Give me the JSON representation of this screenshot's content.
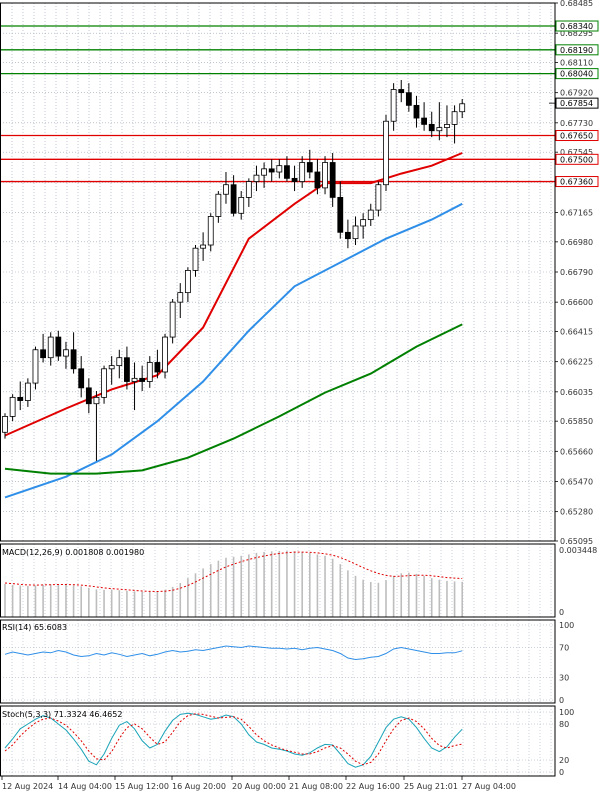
{
  "chart_data": {
    "type": "candlestick",
    "symbol_note": "",
    "price_axis": {
      "ylim": [
        0.65095,
        0.68485
      ],
      "ticks": [
        0.68485,
        0.68295,
        0.6811,
        0.6792,
        0.6773,
        0.67545,
        0.67355,
        0.67165,
        0.6698,
        0.6679,
        0.666,
        0.66415,
        0.66225,
        0.66035,
        0.6585,
        0.6566,
        0.6547,
        0.6528,
        0.65095
      ],
      "tick_labels": [
        "0.68485",
        "0.68295",
        "0.68110",
        "0.67920",
        "0.67730",
        "0.67545",
        "0.67355",
        "0.67165",
        "0.66980",
        "0.66790",
        "0.66600",
        "0.66415",
        "0.66225",
        "0.66035",
        "0.65850",
        "0.65660",
        "0.65470",
        "0.65280",
        "0.65095"
      ]
    },
    "resistance_levels": [
      {
        "value": 0.6834,
        "label": "0.68340",
        "color": "#008000"
      },
      {
        "value": 0.6819,
        "label": "0.68190",
        "color": "#008000"
      },
      {
        "value": 0.6804,
        "label": "0.68040",
        "color": "#008000"
      }
    ],
    "support_levels": [
      {
        "value": 0.6765,
        "label": "0.67650",
        "color": "#e00000"
      },
      {
        "value": 0.675,
        "label": "0.67500",
        "color": "#e00000"
      },
      {
        "value": 0.6736,
        "label": "0.67360",
        "color": "#e00000"
      }
    ],
    "current_price": {
      "value": 0.67854,
      "label": "0.67854"
    },
    "candles": [
      [
        0.6578,
        0.659,
        0.6574,
        0.6588
      ],
      [
        0.6588,
        0.6602,
        0.6585,
        0.66
      ],
      [
        0.66,
        0.661,
        0.6592,
        0.6598
      ],
      [
        0.6598,
        0.6612,
        0.6594,
        0.6609
      ],
      [
        0.6609,
        0.6632,
        0.6605,
        0.663
      ],
      [
        0.663,
        0.664,
        0.6622,
        0.6625
      ],
      [
        0.6625,
        0.6641,
        0.662,
        0.6638
      ],
      [
        0.6638,
        0.6642,
        0.6623,
        0.6626
      ],
      [
        0.6626,
        0.6635,
        0.6618,
        0.663
      ],
      [
        0.663,
        0.6641,
        0.6615,
        0.6618
      ],
      [
        0.6618,
        0.6626,
        0.66,
        0.6606
      ],
      [
        0.6606,
        0.6612,
        0.659,
        0.6596
      ],
      [
        0.6596,
        0.6604,
        0.656,
        0.66
      ],
      [
        0.66,
        0.662,
        0.6596,
        0.6618
      ],
      [
        0.6618,
        0.6626,
        0.6608,
        0.662
      ],
      [
        0.662,
        0.663,
        0.6612,
        0.6625
      ],
      [
        0.6625,
        0.6632,
        0.6605,
        0.661
      ],
      [
        0.661,
        0.6622,
        0.6592,
        0.6612
      ],
      [
        0.6612,
        0.662,
        0.6604,
        0.661
      ],
      [
        0.661,
        0.6626,
        0.6606,
        0.6622
      ],
      [
        0.6622,
        0.663,
        0.6612,
        0.6616
      ],
      [
        0.6616,
        0.664,
        0.6612,
        0.6638
      ],
      [
        0.6638,
        0.6662,
        0.6634,
        0.666
      ],
      [
        0.666,
        0.6672,
        0.665,
        0.6666
      ],
      [
        0.6666,
        0.6682,
        0.666,
        0.668
      ],
      [
        0.668,
        0.6696,
        0.6676,
        0.6694
      ],
      [
        0.6694,
        0.6704,
        0.6686,
        0.6696
      ],
      [
        0.6696,
        0.6716,
        0.6692,
        0.6714
      ],
      [
        0.6714,
        0.673,
        0.671,
        0.6728
      ],
      [
        0.6728,
        0.6742,
        0.6722,
        0.6734
      ],
      [
        0.6734,
        0.674,
        0.6714,
        0.6716
      ],
      [
        0.6716,
        0.673,
        0.6712,
        0.6726
      ],
      [
        0.6726,
        0.6738,
        0.672,
        0.6736
      ],
      [
        0.6736,
        0.6746,
        0.673,
        0.674
      ],
      [
        0.674,
        0.6748,
        0.6732,
        0.6744
      ],
      [
        0.6744,
        0.675,
        0.6736,
        0.6742
      ],
      [
        0.6742,
        0.675,
        0.6738,
        0.6746
      ],
      [
        0.6746,
        0.6752,
        0.6736,
        0.6738
      ],
      [
        0.6738,
        0.6746,
        0.673,
        0.6736
      ],
      [
        0.6736,
        0.6752,
        0.6732,
        0.6748
      ],
      [
        0.6748,
        0.6756,
        0.6738,
        0.6742
      ],
      [
        0.6742,
        0.675,
        0.6728,
        0.6732
      ],
      [
        0.6732,
        0.6752,
        0.6728,
        0.6748
      ],
      [
        0.6748,
        0.6754,
        0.672,
        0.6726
      ],
      [
        0.6726,
        0.6736,
        0.67,
        0.6704
      ],
      [
        0.6704,
        0.6712,
        0.6694,
        0.67
      ],
      [
        0.67,
        0.6714,
        0.6696,
        0.6708
      ],
      [
        0.6708,
        0.6716,
        0.67,
        0.6712
      ],
      [
        0.6712,
        0.6722,
        0.6708,
        0.6718
      ],
      [
        0.6718,
        0.6736,
        0.6714,
        0.6734
      ],
      [
        0.6734,
        0.6778,
        0.673,
        0.6774
      ],
      [
        0.6774,
        0.6798,
        0.6768,
        0.6794
      ],
      [
        0.6794,
        0.68,
        0.6786,
        0.6792
      ],
      [
        0.6792,
        0.6798,
        0.678,
        0.6784
      ],
      [
        0.6784,
        0.679,
        0.677,
        0.6776
      ],
      [
        0.6776,
        0.6786,
        0.6768,
        0.6772
      ],
      [
        0.6772,
        0.678,
        0.6764,
        0.6768
      ],
      [
        0.6768,
        0.6786,
        0.6762,
        0.677
      ],
      [
        0.677,
        0.6784,
        0.6764,
        0.6772
      ],
      [
        0.6772,
        0.6784,
        0.676,
        0.678
      ],
      [
        0.678,
        0.6788,
        0.6776,
        0.6785
      ]
    ],
    "moving_averages": [
      {
        "name": "MA fast",
        "color": "#e00000",
        "points": [
          [
            0,
            0.6576
          ],
          [
            8,
            0.6593
          ],
          [
            14,
            0.6605
          ],
          [
            20,
            0.6614
          ],
          [
            26,
            0.6644
          ],
          [
            32,
            0.67
          ],
          [
            38,
            0.6722
          ],
          [
            42,
            0.6735
          ],
          [
            48,
            0.6735
          ],
          [
            52,
            0.6741
          ],
          [
            56,
            0.6746
          ],
          [
            60,
            0.6754
          ]
        ]
      },
      {
        "name": "MA medium",
        "color": "#2f8fe8",
        "points": [
          [
            0,
            0.6537
          ],
          [
            8,
            0.655
          ],
          [
            14,
            0.6564
          ],
          [
            20,
            0.6585
          ],
          [
            26,
            0.661
          ],
          [
            32,
            0.6642
          ],
          [
            38,
            0.667
          ],
          [
            44,
            0.6685
          ],
          [
            50,
            0.67
          ],
          [
            56,
            0.6712
          ],
          [
            60,
            0.6722
          ]
        ]
      },
      {
        "name": "MA slow",
        "color": "#008000",
        "points": [
          [
            0,
            0.6555
          ],
          [
            6,
            0.6552
          ],
          [
            12,
            0.6552
          ],
          [
            18,
            0.6554
          ],
          [
            24,
            0.6562
          ],
          [
            30,
            0.6574
          ],
          [
            36,
            0.6588
          ],
          [
            42,
            0.6603
          ],
          [
            48,
            0.6615
          ],
          [
            54,
            0.6632
          ],
          [
            60,
            0.6646
          ]
        ]
      }
    ],
    "x_labels": [
      "12 Aug 2024",
      "14 Aug 04:00",
      "15 Aug 12:00",
      "16 Aug 20:00",
      "20 Aug 00:00",
      "21 Aug 08:00",
      "22 Aug 16:00",
      "25 Aug 21:01",
      "27 Aug 04:00"
    ],
    "macd": {
      "label": "MACD(12,26,9) 0.001808 0.001980",
      "ylim": [
        0,
        0.003448
      ],
      "tick_labels": [
        "0.003448",
        "0"
      ],
      "histogram": [
        0.0017,
        0.00165,
        0.00162,
        0.0016,
        0.00162,
        0.00166,
        0.00168,
        0.00168,
        0.00166,
        0.00162,
        0.00158,
        0.0015,
        0.00142,
        0.0014,
        0.0014,
        0.00138,
        0.00135,
        0.00132,
        0.0013,
        0.0013,
        0.00132,
        0.0014,
        0.00155,
        0.00175,
        0.002,
        0.00225,
        0.0025,
        0.00272,
        0.0029,
        0.00305,
        0.0031,
        0.00315,
        0.00322,
        0.0033,
        0.00335,
        0.00338,
        0.0034,
        0.0034,
        0.00338,
        0.00335,
        0.0033,
        0.00322,
        0.00315,
        0.003,
        0.00272,
        0.0024,
        0.00212,
        0.00192,
        0.0018,
        0.00176,
        0.0019,
        0.00212,
        0.00225,
        0.00228,
        0.00222,
        0.00212,
        0.002,
        0.00192,
        0.00186,
        0.00183,
        0.00181
      ],
      "signal": [
        0.00175,
        0.00172,
        0.00168,
        0.00165,
        0.00164,
        0.00165,
        0.00166,
        0.00167,
        0.00167,
        0.00166,
        0.00164,
        0.0016,
        0.00155,
        0.0015,
        0.00146,
        0.00143,
        0.0014,
        0.00137,
        0.00134,
        0.00132,
        0.00131,
        0.00133,
        0.00138,
        0.00148,
        0.00162,
        0.0018,
        0.002,
        0.0022,
        0.0024,
        0.00258,
        0.00272,
        0.00285,
        0.00296,
        0.00306,
        0.00314,
        0.00321,
        0.00327,
        0.00331,
        0.00334,
        0.00334,
        0.00333,
        0.0033,
        0.00325,
        0.00318,
        0.00306,
        0.0029,
        0.00272,
        0.00254,
        0.00238,
        0.00224,
        0.00214,
        0.00209,
        0.0021,
        0.00213,
        0.00215,
        0.00215,
        0.00212,
        0.00208,
        0.00203,
        0.002,
        0.00198
      ]
    },
    "rsi": {
      "label": "RSI(14) 65.6083",
      "ylim": [
        0,
        100
      ],
      "tick_labels": [
        "100",
        "70",
        "30",
        "0"
      ],
      "ticks": [
        100,
        70,
        30,
        0
      ],
      "values": [
        61,
        64,
        62,
        60,
        62,
        64,
        63,
        66,
        64,
        60,
        58,
        59,
        62,
        60,
        63,
        61,
        58,
        60,
        62,
        59,
        61,
        64,
        66,
        64,
        65,
        67,
        66,
        68,
        70,
        72,
        71,
        70,
        72,
        71,
        70,
        69,
        69,
        68,
        69,
        67,
        69,
        70,
        68,
        66,
        62,
        56,
        54,
        55,
        57,
        58,
        62,
        68,
        70,
        68,
        66,
        64,
        62,
        62,
        63,
        63,
        65.6
      ]
    },
    "stoch": {
      "label": "Stoch(5,3,3) 71.3324 46.4652",
      "ylim": [
        0,
        100
      ],
      "tick_labels": [
        "100",
        "80",
        "20",
        "0"
      ],
      "ticks": [
        100,
        80,
        20,
        0
      ],
      "k": [
        40,
        55,
        72,
        80,
        88,
        94,
        90,
        80,
        70,
        55,
        38,
        18,
        12,
        30,
        56,
        78,
        84,
        72,
        52,
        40,
        46,
        68,
        86,
        96,
        98,
        96,
        92,
        88,
        90,
        95,
        92,
        80,
        62,
        50,
        46,
        40,
        38,
        35,
        30,
        28,
        32,
        40,
        46,
        45,
        30,
        14,
        8,
        12,
        26,
        50,
        74,
        88,
        92,
        88,
        74,
        56,
        40,
        34,
        42,
        58,
        71.3
      ],
      "d": [
        35,
        45,
        60,
        72,
        82,
        88,
        90,
        85,
        78,
        66,
        52,
        35,
        22,
        20,
        34,
        56,
        74,
        80,
        72,
        58,
        46,
        50,
        66,
        84,
        94,
        97,
        96,
        93,
        90,
        91,
        92,
        88,
        76,
        62,
        52,
        45,
        40,
        36,
        33,
        30,
        30,
        34,
        40,
        44,
        40,
        30,
        18,
        12,
        16,
        30,
        52,
        72,
        86,
        90,
        84,
        72,
        56,
        44,
        40,
        44,
        46.5
      ]
    }
  }
}
